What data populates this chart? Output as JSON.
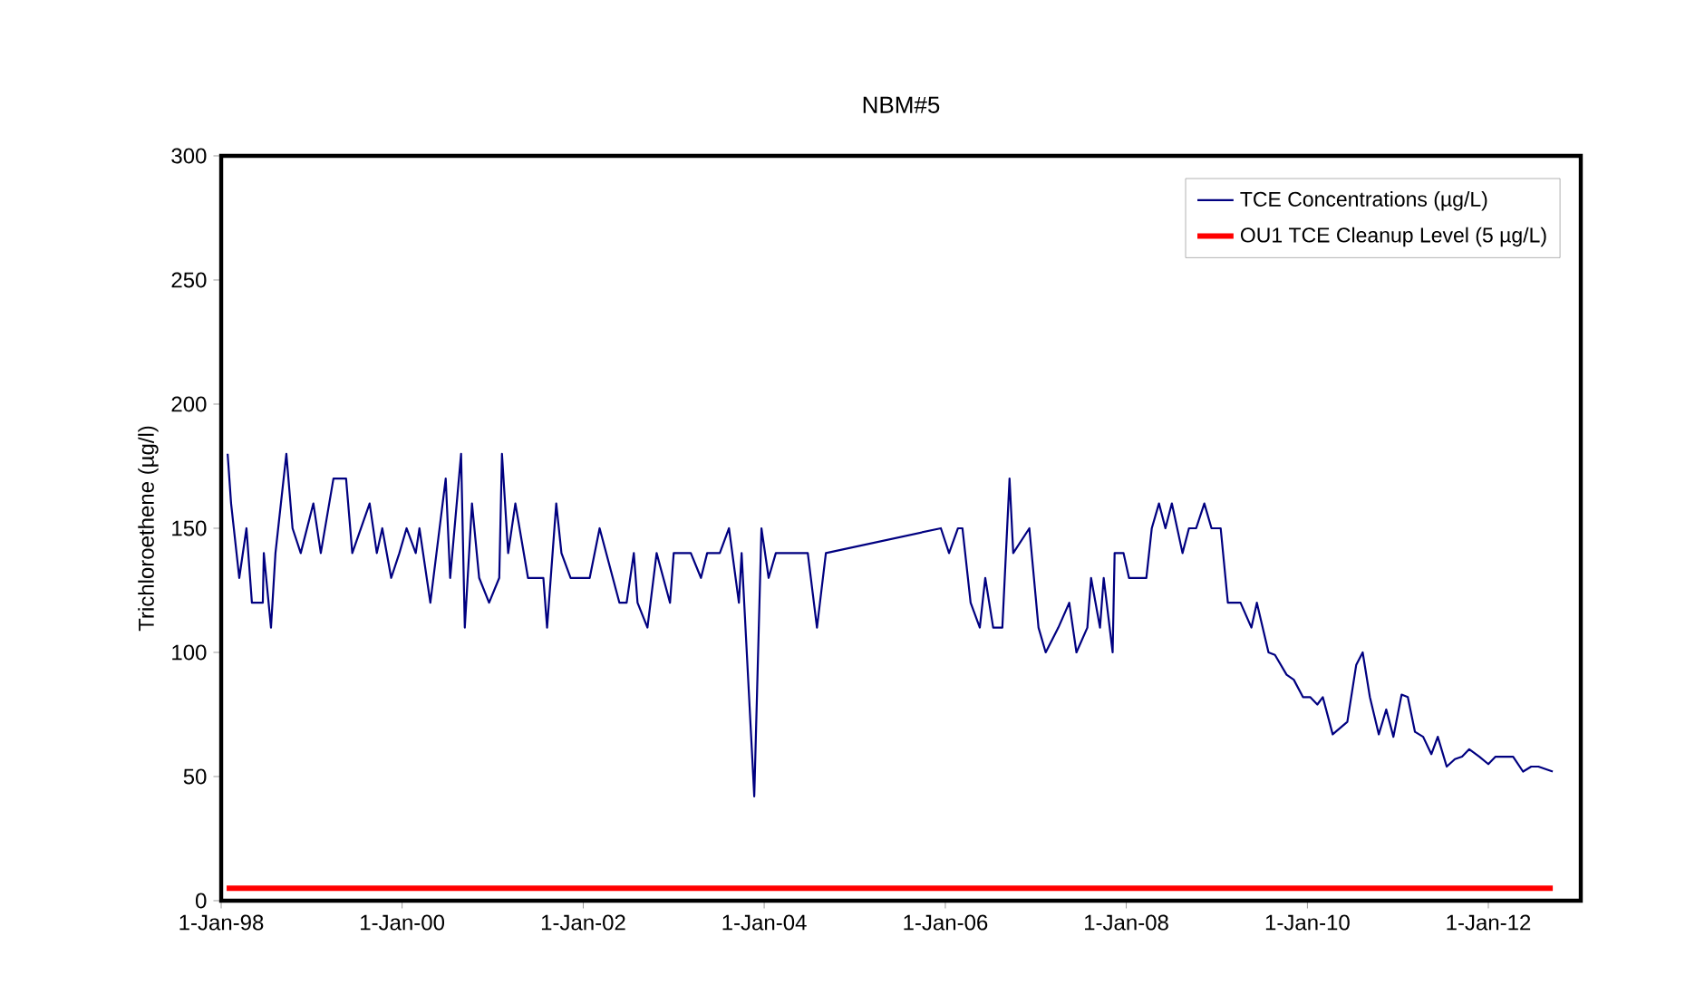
{
  "chart_data": {
    "type": "line",
    "title": "NBM#5",
    "ylabel": "Trichloroethene (µg/l)",
    "xlim": [
      "1998-01-01",
      "2013-01-08"
    ],
    "ylim": [
      0,
      300
    ],
    "xticks": [
      {
        "value": "1998-01-01",
        "label": "1-Jan-98"
      },
      {
        "value": "2000-01-01",
        "label": "1-Jan-00"
      },
      {
        "value": "2002-01-01",
        "label": "1-Jan-02"
      },
      {
        "value": "2004-01-01",
        "label": "1-Jan-04"
      },
      {
        "value": "2006-01-01",
        "label": "1-Jan-06"
      },
      {
        "value": "2008-01-01",
        "label": "1-Jan-08"
      },
      {
        "value": "2010-01-01",
        "label": "1-Jan-10"
      },
      {
        "value": "2012-01-01",
        "label": "1-Jan-12"
      }
    ],
    "yticks": [
      0,
      50,
      100,
      150,
      200,
      250,
      300
    ],
    "grid": false,
    "legend": "top right",
    "marker": "none",
    "line_style": "solid",
    "series": [
      {
        "name": "TCE Concentrations (µg/L)",
        "color": "#000080",
        "x": [
          "1998-01-27",
          "1998-02-10",
          "1998-03-15",
          "1998-04-13",
          "1998-05-05",
          "1998-06-18",
          "1998-06-22",
          "1998-07-21",
          "1998-08-08",
          "1998-09-21",
          "1998-10-16",
          "1998-11-18",
          "1999-01-08",
          "1999-02-07",
          "1999-03-30",
          "1999-05-20",
          "1999-06-14",
          "1999-08-23",
          "1999-09-21",
          "1999-10-13",
          "1999-11-18",
          "1999-12-21",
          "2000-01-19",
          "2000-02-25",
          "2000-03-11",
          "2000-04-24",
          "2000-06-25",
          "2000-07-13",
          "2000-08-26",
          "2000-09-10",
          "2000-10-09",
          "2000-11-07",
          "2000-12-17",
          "2001-01-27",
          "2001-02-07",
          "2001-03-04",
          "2001-04-02",
          "2001-05-23",
          "2001-07-24",
          "2001-08-08",
          "2001-09-14",
          "2001-10-05",
          "2001-11-11",
          "2002-01-27",
          "2002-03-08",
          "2002-05-27",
          "2002-06-25",
          "2002-07-24",
          "2002-08-08",
          "2002-09-17",
          "2002-10-24",
          "2002-12-17",
          "2003-01-01",
          "2003-03-11",
          "2003-04-21",
          "2003-05-16",
          "2003-07-06",
          "2003-08-12",
          "2003-09-21",
          "2003-10-02",
          "2003-11-22",
          "2003-12-21",
          "2004-01-19",
          "2004-02-17",
          "2004-06-25",
          "2004-08-01",
          "2004-09-06",
          "2005-12-14",
          "2006-01-16",
          "2006-02-21",
          "2006-03-11",
          "2006-04-13",
          "2006-05-20",
          "2006-06-11",
          "2006-07-13",
          "2006-08-19",
          "2006-09-17",
          "2006-10-02",
          "2006-12-06",
          "2007-01-12",
          "2007-02-10",
          "2007-04-02",
          "2007-05-16",
          "2007-06-14",
          "2007-07-28",
          "2007-08-12",
          "2007-09-17",
          "2007-10-02",
          "2007-11-07",
          "2007-11-15",
          "2007-12-21",
          "2008-01-12",
          "2008-03-22",
          "2008-04-13",
          "2008-05-12",
          "2008-06-07",
          "2008-07-03",
          "2008-08-15",
          "2008-09-10",
          "2008-10-09",
          "2008-11-11",
          "2008-12-10",
          "2009-01-16",
          "2009-02-14",
          "2009-04-06",
          "2009-05-20",
          "2009-06-11",
          "2009-07-28",
          "2009-08-23",
          "2009-10-09",
          "2009-11-07",
          "2009-12-14",
          "2010-01-12",
          "2010-02-10",
          "2010-03-04",
          "2010-04-13",
          "2010-06-11",
          "2010-07-17",
          "2010-08-12",
          "2010-09-10",
          "2010-10-16",
          "2010-11-15",
          "2010-12-14",
          "2011-01-16",
          "2011-02-10",
          "2011-03-11",
          "2011-04-13",
          "2011-05-16",
          "2011-06-11",
          "2011-07-17",
          "2011-08-19",
          "2011-09-17",
          "2011-10-16",
          "2011-11-26",
          "2012-01-01",
          "2012-01-30",
          "2012-04-10",
          "2012-05-20",
          "2012-06-22",
          "2012-07-21",
          "2012-09-17"
        ],
        "values": [
          180,
          160,
          130,
          150,
          120,
          120,
          140,
          110,
          140,
          180,
          150,
          140,
          160,
          140,
          170,
          170,
          140,
          160,
          140,
          150,
          130,
          140,
          150,
          140,
          150,
          120,
          170,
          130,
          180,
          110,
          160,
          130,
          120,
          130,
          180,
          140,
          160,
          130,
          130,
          110,
          160,
          140,
          130,
          130,
          150,
          120,
          120,
          140,
          120,
          110,
          140,
          120,
          140,
          140,
          130,
          140,
          140,
          150,
          120,
          140,
          42,
          150,
          130,
          140,
          140,
          110,
          140,
          150,
          140,
          150,
          150,
          120,
          110,
          130,
          110,
          110,
          170,
          140,
          150,
          110,
          100,
          110,
          120,
          100,
          110,
          130,
          110,
          130,
          100,
          140,
          140,
          130,
          130,
          150,
          160,
          150,
          160,
          140,
          150,
          150,
          160,
          150,
          150,
          120,
          120,
          110,
          120,
          100,
          99,
          91,
          89,
          82,
          82,
          79,
          82,
          67,
          72,
          95,
          100,
          82,
          67,
          77,
          66,
          83,
          82,
          68,
          66,
          59,
          66,
          54,
          57,
          58,
          61,
          58,
          55,
          58,
          58,
          52,
          54,
          54,
          52
        ]
      },
      {
        "name": "OU1 TCE Cleanup Level (5 µg/L)",
        "color": "#ff0000",
        "x": [
          "1998-01-23",
          "2012-09-17"
        ],
        "values": [
          5,
          5
        ]
      }
    ]
  }
}
